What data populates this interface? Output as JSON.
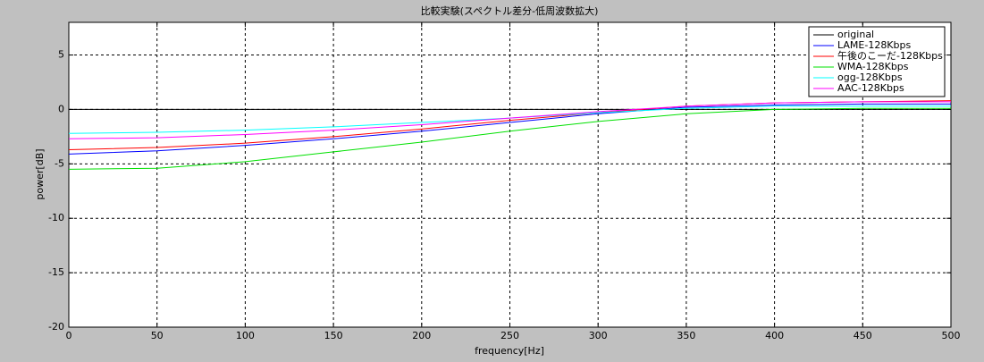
{
  "chart_data": {
    "type": "line",
    "title": "比較実験(スペクトル差分-低周波数拡大)",
    "x_label": "frequency[Hz]",
    "y_label": "power[dB]",
    "x": [
      0,
      50,
      100,
      150,
      200,
      250,
      300,
      350,
      400,
      450,
      500
    ],
    "series": [
      {
        "name": "original",
        "color": "#000000",
        "values": [
          0,
          0,
          0,
          0,
          0,
          0,
          0,
          0,
          0,
          0,
          0
        ]
      },
      {
        "name": "LAME-128Kbps",
        "color": "#0000ff",
        "values": [
          -4.1,
          -3.8,
          -3.3,
          -2.7,
          -2.0,
          -1.2,
          -0.4,
          0.2,
          0.4,
          0.5,
          0.5
        ]
      },
      {
        "name": "午後のこーだ-128Kbps",
        "color": "#ff0000",
        "values": [
          -3.7,
          -3.5,
          -3.1,
          -2.5,
          -1.8,
          -1.0,
          -0.3,
          0.3,
          0.6,
          0.7,
          0.8
        ]
      },
      {
        "name": "WMA-128Kbps",
        "color": "#00e000",
        "values": [
          -5.5,
          -5.4,
          -4.8,
          -3.9,
          -3.0,
          -2.0,
          -1.1,
          -0.4,
          0.0,
          0.1,
          0.1
        ]
      },
      {
        "name": "ogg-128Kbps",
        "color": "#00ffff",
        "values": [
          -2.2,
          -2.1,
          -1.9,
          -1.6,
          -1.2,
          -0.8,
          -0.3,
          0.1,
          0.3,
          0.3,
          0.3
        ]
      },
      {
        "name": "AAC-128Kbps",
        "color": "#ff00ff",
        "values": [
          -2.7,
          -2.6,
          -2.3,
          -1.9,
          -1.4,
          -0.8,
          -0.2,
          0.3,
          0.6,
          0.7,
          0.7
        ]
      }
    ],
    "xlim": [
      0,
      500
    ],
    "xticks": [
      0,
      50,
      100,
      150,
      200,
      250,
      300,
      350,
      400,
      450,
      500
    ],
    "ylim": [
      -20,
      8
    ],
    "yticks": [
      -20,
      -15,
      -10,
      -5,
      0,
      5
    ],
    "grid": true,
    "legend": "upper right"
  }
}
